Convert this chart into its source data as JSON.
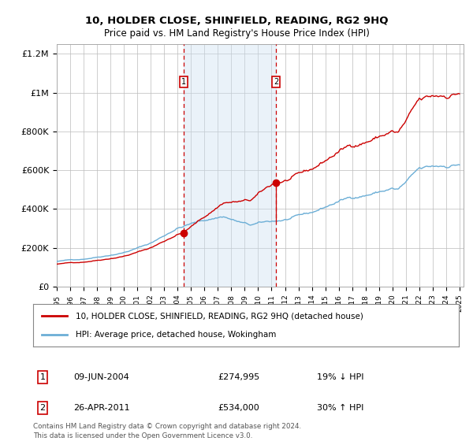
{
  "title": "10, HOLDER CLOSE, SHINFIELD, READING, RG2 9HQ",
  "subtitle": "Price paid vs. HM Land Registry's House Price Index (HPI)",
  "sale1_date": "09-JUN-2004",
  "sale1_price": 274995,
  "sale1_hpi_label": "19% ↓ HPI",
  "sale1_year": 2004.44,
  "sale2_date": "26-APR-2011",
  "sale2_price": 534000,
  "sale2_hpi_label": "30% ↑ HPI",
  "sale2_year": 2011.32,
  "legend_line1": "10, HOLDER CLOSE, SHINFIELD, READING, RG2 9HQ (detached house)",
  "legend_line2": "HPI: Average price, detached house, Wokingham",
  "footnote1": "Contains HM Land Registry data © Crown copyright and database right 2024.",
  "footnote2": "This data is licensed under the Open Government Licence v3.0.",
  "hpi_color": "#6baed6",
  "sale_color": "#cc0000",
  "shaded_color": "#cce0f0",
  "background_color": "#ffffff",
  "grid_color": "#bbbbbb",
  "ylim": [
    0,
    1250000
  ],
  "yticks": [
    0,
    200000,
    400000,
    600000,
    800000,
    1000000,
    1200000
  ],
  "ytick_labels": [
    "£0",
    "£200K",
    "£400K",
    "£600K",
    "£800K",
    "£1M",
    "£1.2M"
  ],
  "year_start": 1995,
  "year_end": 2025
}
